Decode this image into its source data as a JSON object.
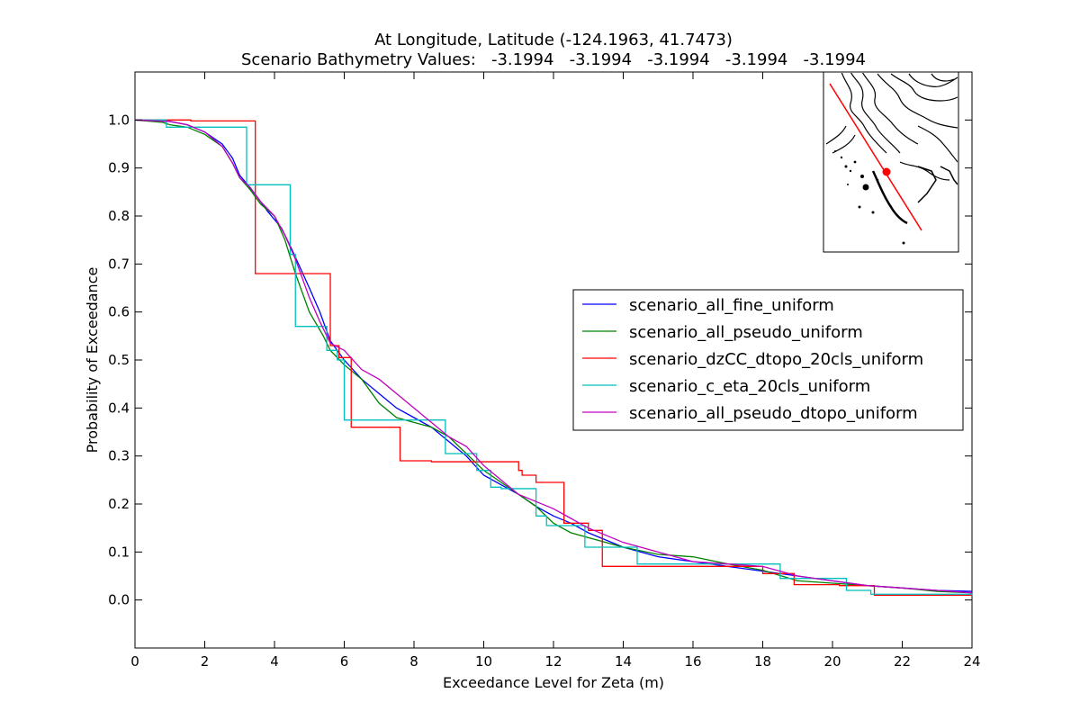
{
  "chart_data": {
    "type": "line",
    "title": "At Longitude, Latitude (-124.1963,  41.7473)",
    "subtitle": "Scenario Bathymetry Values:   -3.1994   -3.1994   -3.1994   -3.1994   -3.1994",
    "xlabel": "Exceedance Level for Zeta (m)",
    "ylabel": "Probability of Exceedance",
    "xlim": [
      0,
      24
    ],
    "ylim": [
      -0.1,
      1.1
    ],
    "xticks": [
      "0",
      "2",
      "4",
      "6",
      "8",
      "10",
      "12",
      "14",
      "16",
      "18",
      "20",
      "22",
      "24"
    ],
    "yticks": [
      "0.0",
      "0.1",
      "0.2",
      "0.3",
      "0.4",
      "0.5",
      "0.6",
      "0.7",
      "0.8",
      "0.9",
      "1.0"
    ],
    "grid": false,
    "legend_position": "right",
    "series": [
      {
        "name": "scenario_all_fine_uniform",
        "color": "#0000ff",
        "step": false,
        "points": [
          [
            0,
            1.0
          ],
          [
            1.0,
            0.997
          ],
          [
            1.5,
            0.99
          ],
          [
            2.0,
            0.975
          ],
          [
            2.5,
            0.95
          ],
          [
            2.8,
            0.92
          ],
          [
            3.0,
            0.885
          ],
          [
            3.2,
            0.868
          ],
          [
            3.5,
            0.84
          ],
          [
            3.8,
            0.81
          ],
          [
            4.2,
            0.775
          ],
          [
            4.5,
            0.73
          ],
          [
            5.0,
            0.65
          ],
          [
            5.3,
            0.6
          ],
          [
            5.6,
            0.54
          ],
          [
            6.0,
            0.5
          ],
          [
            6.5,
            0.46
          ],
          [
            7.0,
            0.43
          ],
          [
            7.5,
            0.4
          ],
          [
            8.0,
            0.38
          ],
          [
            8.5,
            0.36
          ],
          [
            9.0,
            0.33
          ],
          [
            9.5,
            0.3
          ],
          [
            10.0,
            0.26
          ],
          [
            10.5,
            0.24
          ],
          [
            11.0,
            0.22
          ],
          [
            11.5,
            0.195
          ],
          [
            12.0,
            0.175
          ],
          [
            12.5,
            0.16
          ],
          [
            13.0,
            0.14
          ],
          [
            14.0,
            0.11
          ],
          [
            15.0,
            0.09
          ],
          [
            16.0,
            0.08
          ],
          [
            17.0,
            0.07
          ],
          [
            18.0,
            0.06
          ],
          [
            19.0,
            0.05
          ],
          [
            20.0,
            0.04
          ],
          [
            21.0,
            0.03
          ],
          [
            22.0,
            0.025
          ],
          [
            23.0,
            0.02
          ],
          [
            24.0,
            0.018
          ]
        ]
      },
      {
        "name": "scenario_all_pseudo_uniform",
        "color": "#008000",
        "step": false,
        "points": [
          [
            0,
            1.0
          ],
          [
            0.8,
            0.995
          ],
          [
            1.0,
            0.99
          ],
          [
            1.5,
            0.985
          ],
          [
            2.0,
            0.97
          ],
          [
            2.5,
            0.945
          ],
          [
            2.8,
            0.91
          ],
          [
            3.0,
            0.88
          ],
          [
            3.3,
            0.855
          ],
          [
            3.6,
            0.825
          ],
          [
            4.0,
            0.8
          ],
          [
            4.3,
            0.75
          ],
          [
            4.6,
            0.68
          ],
          [
            5.0,
            0.6
          ],
          [
            5.4,
            0.55
          ],
          [
            5.6,
            0.52
          ],
          [
            6.0,
            0.49
          ],
          [
            6.5,
            0.46
          ],
          [
            7.0,
            0.41
          ],
          [
            7.5,
            0.38
          ],
          [
            8.0,
            0.37
          ],
          [
            8.5,
            0.36
          ],
          [
            9.0,
            0.34
          ],
          [
            9.5,
            0.305
          ],
          [
            10.0,
            0.27
          ],
          [
            10.5,
            0.245
          ],
          [
            11.0,
            0.22
          ],
          [
            11.5,
            0.195
          ],
          [
            12.0,
            0.16
          ],
          [
            12.5,
            0.14
          ],
          [
            13.0,
            0.13
          ],
          [
            14.0,
            0.11
          ],
          [
            15.0,
            0.095
          ],
          [
            16.0,
            0.09
          ],
          [
            17.0,
            0.075
          ],
          [
            18.0,
            0.062
          ],
          [
            19.0,
            0.04
          ],
          [
            20.0,
            0.035
          ],
          [
            21.0,
            0.03
          ],
          [
            22.0,
            0.025
          ],
          [
            23.0,
            0.018
          ],
          [
            24.0,
            0.015
          ]
        ]
      },
      {
        "name": "scenario_dzCC_dtopo_20cls_uniform",
        "color": "#ff0000",
        "step": true,
        "points": [
          [
            0,
            1.0
          ],
          [
            1.0,
            1.0
          ],
          [
            1.6,
            0.998
          ],
          [
            3.45,
            0.68
          ],
          [
            5.6,
            0.53
          ],
          [
            5.85,
            0.505
          ],
          [
            6.2,
            0.36
          ],
          [
            7.6,
            0.29
          ],
          [
            8.5,
            0.288
          ],
          [
            11.0,
            0.27
          ],
          [
            11.1,
            0.26
          ],
          [
            11.5,
            0.245
          ],
          [
            12.3,
            0.16
          ],
          [
            12.8,
            0.16
          ],
          [
            13.0,
            0.145
          ],
          [
            13.4,
            0.07
          ],
          [
            16.0,
            0.07
          ],
          [
            18.0,
            0.055
          ],
          [
            18.9,
            0.032
          ],
          [
            20.2,
            0.03
          ],
          [
            21.2,
            0.01
          ],
          [
            24.0,
            0.01
          ]
        ]
      },
      {
        "name": "scenario_c_eta_20cls_uniform",
        "color": "#00bfbf",
        "step": true,
        "points": [
          [
            0,
            1.0
          ],
          [
            0.9,
            0.985
          ],
          [
            3.2,
            0.865
          ],
          [
            4.45,
            0.72
          ],
          [
            4.6,
            0.57
          ],
          [
            5.5,
            0.52
          ],
          [
            5.8,
            0.5
          ],
          [
            6.0,
            0.375
          ],
          [
            8.9,
            0.305
          ],
          [
            9.8,
            0.27
          ],
          [
            10.2,
            0.235
          ],
          [
            10.5,
            0.232
          ],
          [
            11.5,
            0.175
          ],
          [
            11.8,
            0.155
          ],
          [
            12.9,
            0.11
          ],
          [
            14.4,
            0.075
          ],
          [
            18.5,
            0.045
          ],
          [
            20.4,
            0.02
          ],
          [
            21.1,
            0.012
          ],
          [
            24.0,
            0.01
          ]
        ]
      },
      {
        "name": "scenario_all_pseudo_dtopo_uniform",
        "color": "#bf00bf",
        "step": false,
        "points": [
          [
            0,
            1.0
          ],
          [
            1.0,
            0.997
          ],
          [
            1.5,
            0.99
          ],
          [
            2.0,
            0.975
          ],
          [
            2.5,
            0.945
          ],
          [
            2.8,
            0.91
          ],
          [
            3.0,
            0.88
          ],
          [
            3.3,
            0.86
          ],
          [
            3.6,
            0.83
          ],
          [
            4.0,
            0.8
          ],
          [
            4.3,
            0.76
          ],
          [
            4.6,
            0.71
          ],
          [
            5.0,
            0.63
          ],
          [
            5.3,
            0.58
          ],
          [
            5.6,
            0.535
          ],
          [
            6.0,
            0.52
          ],
          [
            6.5,
            0.48
          ],
          [
            7.0,
            0.46
          ],
          [
            7.5,
            0.43
          ],
          [
            8.0,
            0.4
          ],
          [
            8.5,
            0.37
          ],
          [
            9.0,
            0.34
          ],
          [
            9.5,
            0.32
          ],
          [
            10.0,
            0.28
          ],
          [
            10.5,
            0.25
          ],
          [
            11.0,
            0.22
          ],
          [
            11.5,
            0.205
          ],
          [
            12.0,
            0.19
          ],
          [
            12.5,
            0.17
          ],
          [
            13.0,
            0.15
          ],
          [
            14.0,
            0.12
          ],
          [
            15.0,
            0.1
          ],
          [
            16.0,
            0.08
          ],
          [
            17.0,
            0.075
          ],
          [
            18.0,
            0.07
          ],
          [
            19.0,
            0.05
          ],
          [
            20.0,
            0.04
          ],
          [
            21.0,
            0.03
          ],
          [
            22.0,
            0.025
          ],
          [
            23.0,
            0.02
          ],
          [
            24.0,
            0.015
          ]
        ]
      }
    ]
  },
  "inset_map": {
    "transect_color": "#ff0000",
    "marker_color": "#ff0000"
  }
}
